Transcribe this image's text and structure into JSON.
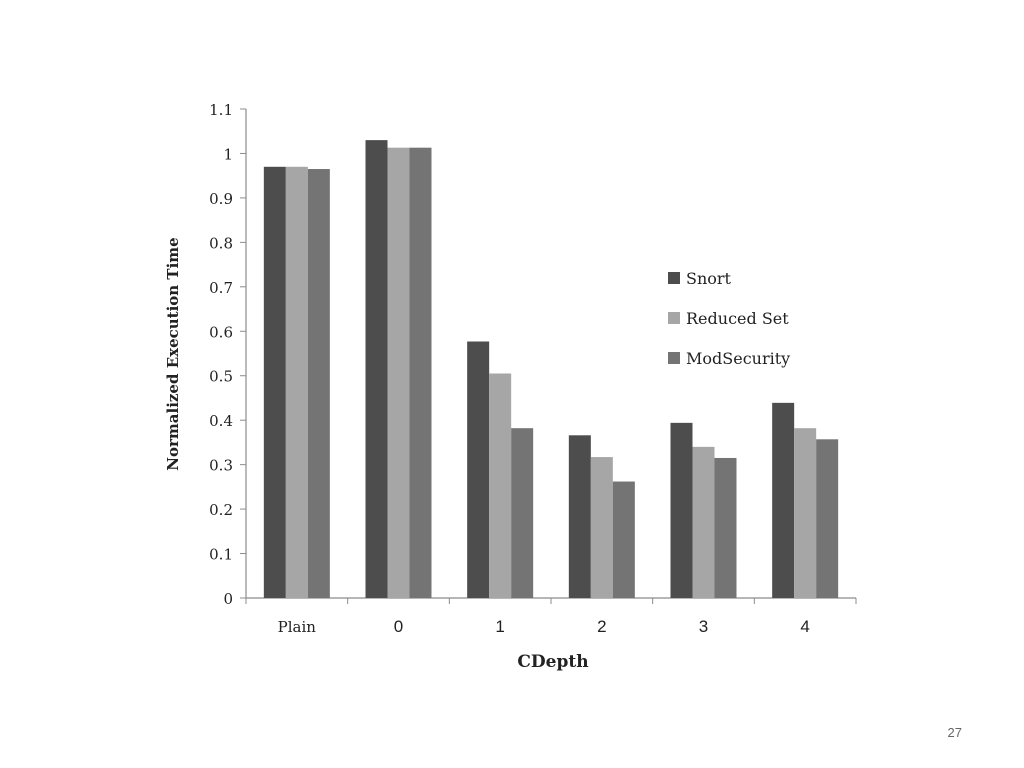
{
  "slide": {
    "page_number": "27"
  },
  "chart_data": {
    "type": "bar",
    "categories": [
      "Plain",
      "0",
      "1",
      "2",
      "3",
      "4"
    ],
    "series": [
      {
        "name": "Snort",
        "color": "#4d4d4d",
        "values": [
          0.97,
          1.03,
          0.577,
          0.366,
          0.394,
          0.439
        ]
      },
      {
        "name": "Reduced Set",
        "color": "#a6a6a6",
        "values": [
          0.97,
          1.013,
          0.505,
          0.317,
          0.34,
          0.382
        ]
      },
      {
        "name": "ModSecurity",
        "color": "#747474",
        "values": [
          0.965,
          1.013,
          0.382,
          0.262,
          0.315,
          0.357
        ]
      }
    ],
    "title": "",
    "xlabel": "CDepth",
    "ylabel": "Normalized Execution Time",
    "ylim": [
      0,
      1.1
    ],
    "yticks": [
      "0",
      "0.1",
      "0.2",
      "0.3",
      "0.4",
      "0.5",
      "0.6",
      "0.7",
      "0.8",
      "0.9",
      "1",
      "1.1"
    ],
    "grid": false,
    "legend_position": "right"
  }
}
